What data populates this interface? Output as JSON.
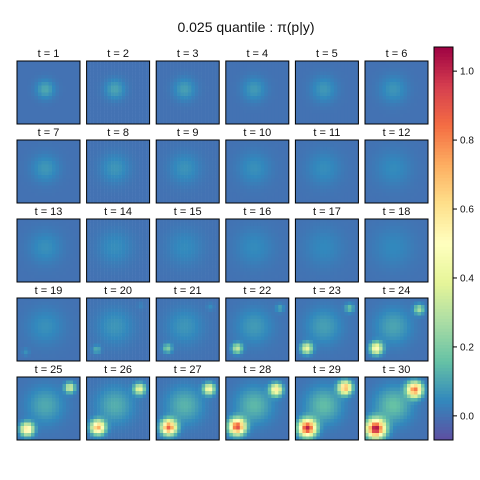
{
  "chart_data": {
    "type": "heatmap",
    "title": "0.025 quantile : π(p|y)",
    "panel_titles": [
      "t = 1",
      "t = 2",
      "t = 3",
      "t = 4",
      "t = 5",
      "t = 6",
      "t = 7",
      "t = 8",
      "t = 9",
      "t = 10",
      "t = 11",
      "t = 12",
      "t = 13",
      "t = 14",
      "t = 15",
      "t = 16",
      "t = 17",
      "t = 18",
      "t = 19",
      "t = 20",
      "t = 21",
      "t = 22",
      "t = 23",
      "t = 24",
      "t = 25",
      "t = 26",
      "t = 27",
      "t = 28",
      "t = 29",
      "t = 30"
    ],
    "grid": {
      "rows": 5,
      "cols": 6,
      "resolution": 18
    },
    "colorbar": {
      "range": [
        -0.07,
        1.07
      ],
      "ticks": [
        1.0,
        0.8,
        0.6,
        0.4,
        0.2,
        0.0
      ],
      "tick_labels": [
        "1.0",
        "0.8",
        "0.6",
        "0.4",
        "0.2",
        "0.0"
      ],
      "palette": [
        "#5e4fa2",
        "#3288bd",
        "#66c2a5",
        "#abdda4",
        "#e6f598",
        "#ffffbf",
        "#fee08b",
        "#fdae61",
        "#f46d43",
        "#d53e4f",
        "#9e0142"
      ]
    },
    "background_value": 0.0,
    "panels": [
      {
        "t": 1,
        "diffuse": {
          "cx": 0.45,
          "cy": 0.45,
          "peak": 0.11,
          "sigma": 0.1
        },
        "hotspots": []
      },
      {
        "t": 2,
        "diffuse": {
          "cx": 0.45,
          "cy": 0.45,
          "peak": 0.1,
          "sigma": 0.11
        },
        "hotspots": []
      },
      {
        "t": 3,
        "diffuse": {
          "cx": 0.45,
          "cy": 0.45,
          "peak": 0.09,
          "sigma": 0.12
        },
        "hotspots": []
      },
      {
        "t": 4,
        "diffuse": {
          "cx": 0.45,
          "cy": 0.45,
          "peak": 0.08,
          "sigma": 0.13
        },
        "hotspots": []
      },
      {
        "t": 5,
        "diffuse": {
          "cx": 0.45,
          "cy": 0.45,
          "peak": 0.075,
          "sigma": 0.14
        },
        "hotspots": []
      },
      {
        "t": 6,
        "diffuse": {
          "cx": 0.45,
          "cy": 0.45,
          "peak": 0.07,
          "sigma": 0.15
        },
        "hotspots": []
      },
      {
        "t": 7,
        "diffuse": {
          "cx": 0.45,
          "cy": 0.45,
          "peak": 0.075,
          "sigma": 0.15
        },
        "hotspots": []
      },
      {
        "t": 8,
        "diffuse": {
          "cx": 0.45,
          "cy": 0.45,
          "peak": 0.07,
          "sigma": 0.16
        },
        "hotspots": []
      },
      {
        "t": 9,
        "diffuse": {
          "cx": 0.45,
          "cy": 0.45,
          "peak": 0.065,
          "sigma": 0.17
        },
        "hotspots": []
      },
      {
        "t": 10,
        "diffuse": {
          "cx": 0.45,
          "cy": 0.45,
          "peak": 0.06,
          "sigma": 0.18
        },
        "hotspots": []
      },
      {
        "t": 11,
        "diffuse": {
          "cx": 0.45,
          "cy": 0.45,
          "peak": 0.055,
          "sigma": 0.19
        },
        "hotspots": []
      },
      {
        "t": 12,
        "diffuse": {
          "cx": 0.45,
          "cy": 0.45,
          "peak": 0.05,
          "sigma": 0.2
        },
        "hotspots": []
      },
      {
        "t": 13,
        "diffuse": {
          "cx": 0.45,
          "cy": 0.45,
          "peak": 0.06,
          "sigma": 0.18
        },
        "hotspots": []
      },
      {
        "t": 14,
        "diffuse": {
          "cx": 0.45,
          "cy": 0.45,
          "peak": 0.055,
          "sigma": 0.19
        },
        "hotspots": []
      },
      {
        "t": 15,
        "diffuse": {
          "cx": 0.45,
          "cy": 0.45,
          "peak": 0.05,
          "sigma": 0.2
        },
        "hotspots": []
      },
      {
        "t": 16,
        "diffuse": {
          "cx": 0.45,
          "cy": 0.45,
          "peak": 0.05,
          "sigma": 0.21
        },
        "hotspots": []
      },
      {
        "t": 17,
        "diffuse": {
          "cx": 0.45,
          "cy": 0.45,
          "peak": 0.045,
          "sigma": 0.22
        },
        "hotspots": []
      },
      {
        "t": 18,
        "diffuse": {
          "cx": 0.45,
          "cy": 0.45,
          "peak": 0.045,
          "sigma": 0.23
        },
        "hotspots": []
      },
      {
        "t": 19,
        "diffuse": {
          "cx": 0.45,
          "cy": 0.45,
          "peak": 0.06,
          "sigma": 0.2
        },
        "hotspots": [
          {
            "x": 0.14,
            "y": 0.86,
            "value": 0.06,
            "sigma": 0.04
          }
        ]
      },
      {
        "t": 20,
        "diffuse": {
          "cx": 0.45,
          "cy": 0.45,
          "peak": 0.07,
          "sigma": 0.2
        },
        "hotspots": [
          {
            "x": 0.16,
            "y": 0.82,
            "value": 0.12,
            "sigma": 0.045
          },
          {
            "x": 0.86,
            "y": 0.12,
            "value": 0.03,
            "sigma": 0.04
          }
        ]
      },
      {
        "t": 21,
        "diffuse": {
          "cx": 0.45,
          "cy": 0.45,
          "peak": 0.07,
          "sigma": 0.2
        },
        "hotspots": [
          {
            "x": 0.18,
            "y": 0.8,
            "value": 0.2,
            "sigma": 0.05
          },
          {
            "x": 0.86,
            "y": 0.14,
            "value": 0.05,
            "sigma": 0.04
          }
        ]
      },
      {
        "t": 22,
        "diffuse": {
          "cx": 0.45,
          "cy": 0.45,
          "peak": 0.08,
          "sigma": 0.2
        },
        "hotspots": [
          {
            "x": 0.18,
            "y": 0.8,
            "value": 0.32,
            "sigma": 0.055
          },
          {
            "x": 0.86,
            "y": 0.16,
            "value": 0.1,
            "sigma": 0.045
          }
        ]
      },
      {
        "t": 23,
        "diffuse": {
          "cx": 0.45,
          "cy": 0.45,
          "peak": 0.09,
          "sigma": 0.2
        },
        "hotspots": [
          {
            "x": 0.18,
            "y": 0.8,
            "value": 0.42,
            "sigma": 0.06
          },
          {
            "x": 0.86,
            "y": 0.16,
            "value": 0.16,
            "sigma": 0.05
          }
        ]
      },
      {
        "t": 24,
        "diffuse": {
          "cx": 0.45,
          "cy": 0.45,
          "peak": 0.1,
          "sigma": 0.2
        },
        "hotspots": [
          {
            "x": 0.18,
            "y": 0.8,
            "value": 0.52,
            "sigma": 0.065
          },
          {
            "x": 0.86,
            "y": 0.18,
            "value": 0.26,
            "sigma": 0.055
          }
        ]
      },
      {
        "t": 25,
        "diffuse": {
          "cx": 0.45,
          "cy": 0.45,
          "peak": 0.11,
          "sigma": 0.2
        },
        "hotspots": [
          {
            "x": 0.16,
            "y": 0.83,
            "value": 0.6,
            "sigma": 0.07
          },
          {
            "x": 0.84,
            "y": 0.17,
            "value": 0.36,
            "sigma": 0.055
          }
        ]
      },
      {
        "t": 26,
        "diffuse": {
          "cx": 0.45,
          "cy": 0.45,
          "peak": 0.12,
          "sigma": 0.2
        },
        "hotspots": [
          {
            "x": 0.18,
            "y": 0.8,
            "value": 0.72,
            "sigma": 0.075
          },
          {
            "x": 0.84,
            "y": 0.19,
            "value": 0.42,
            "sigma": 0.06
          }
        ]
      },
      {
        "t": 27,
        "diffuse": {
          "cx": 0.45,
          "cy": 0.45,
          "peak": 0.13,
          "sigma": 0.2
        },
        "hotspots": [
          {
            "x": 0.2,
            "y": 0.8,
            "value": 0.86,
            "sigma": 0.08
          },
          {
            "x": 0.84,
            "y": 0.19,
            "value": 0.48,
            "sigma": 0.06
          }
        ]
      },
      {
        "t": 28,
        "diffuse": {
          "cx": 0.45,
          "cy": 0.45,
          "peak": 0.14,
          "sigma": 0.2
        },
        "hotspots": [
          {
            "x": 0.18,
            "y": 0.79,
            "value": 0.92,
            "sigma": 0.085
          },
          {
            "x": 0.8,
            "y": 0.2,
            "value": 0.55,
            "sigma": 0.065
          }
        ]
      },
      {
        "t": 29,
        "diffuse": {
          "cx": 0.45,
          "cy": 0.45,
          "peak": 0.15,
          "sigma": 0.2
        },
        "hotspots": [
          {
            "x": 0.19,
            "y": 0.81,
            "value": 1.0,
            "sigma": 0.09
          },
          {
            "x": 0.79,
            "y": 0.17,
            "value": 0.72,
            "sigma": 0.07
          }
        ]
      },
      {
        "t": 30,
        "diffuse": {
          "cx": 0.45,
          "cy": 0.45,
          "peak": 0.16,
          "sigma": 0.2
        },
        "hotspots": [
          {
            "x": 0.17,
            "y": 0.82,
            "value": 1.05,
            "sigma": 0.1
          },
          {
            "x": 0.79,
            "y": 0.2,
            "value": 0.82,
            "sigma": 0.08
          }
        ]
      }
    ]
  }
}
